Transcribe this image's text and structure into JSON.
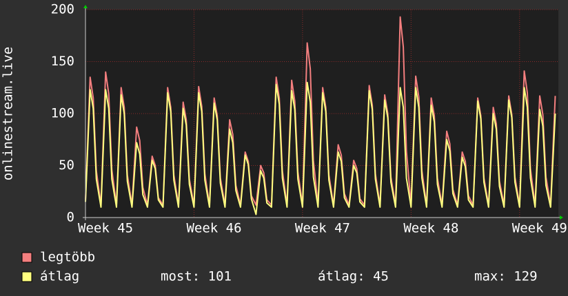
{
  "chart_data": {
    "type": "line",
    "y_label": "onlinestream.live",
    "x": [
      0,
      0.3,
      0.5,
      0.7,
      1,
      1.3,
      1.5,
      1.7,
      2,
      2.3,
      2.5,
      2.7,
      3,
      3.3,
      3.5,
      3.7,
      4,
      4.3,
      4.5,
      4.7,
      5,
      5.3,
      5.5,
      5.7,
      6,
      6.3,
      6.5,
      6.7,
      7,
      7.3,
      7.5,
      7.7,
      8,
      8.3,
      8.5,
      8.7,
      9,
      9.3,
      9.5,
      9.7,
      10,
      10.3,
      10.5,
      10.7,
      11,
      11.3,
      11.5,
      11.7,
      12,
      12.3,
      12.5,
      12.7,
      13,
      13.3,
      13.5,
      13.7,
      14,
      14.3,
      14.5,
      14.7,
      15,
      15.3,
      15.5,
      15.7,
      16,
      16.3,
      16.5,
      16.7,
      17,
      17.3,
      17.5,
      17.7,
      18,
      18.3,
      18.5,
      18.7,
      19,
      19.3,
      19.5,
      19.7,
      20,
      20.3,
      20.5,
      20.7,
      21,
      21.3,
      21.5,
      21.7,
      22,
      22.3,
      22.5,
      22.7,
      23,
      23.3,
      23.5,
      23.7,
      24,
      24.3,
      24.5,
      24.7,
      25,
      25.3,
      25.5,
      25.7,
      26,
      26.3,
      26.5,
      26.7,
      27,
      27.3,
      27.5,
      27.7,
      28,
      28.3,
      28.5,
      28.7,
      29,
      29.3,
      29.5,
      29.7,
      30,
      30.3
    ],
    "series": [
      {
        "name": "legtöbb",
        "color": "#f47f7f",
        "values": [
          17,
          135,
          115,
          45,
          12,
          140,
          119,
          46,
          12,
          125,
          106,
          41,
          12,
          87,
          74,
          29,
          12,
          59,
          50,
          19,
          12,
          125,
          106,
          41,
          12,
          111,
          94,
          37,
          12,
          126,
          107,
          42,
          12,
          115,
          98,
          38,
          12,
          94,
          80,
          31,
          12,
          63,
          54,
          21,
          12,
          50,
          43,
          17,
          12,
          135,
          115,
          45,
          12,
          132,
          112,
          44,
          12,
          168,
          143,
          55,
          12,
          125,
          106,
          41,
          12,
          70,
          60,
          23,
          12,
          55,
          47,
          18,
          12,
          127,
          108,
          42,
          12,
          118,
          100,
          39,
          12,
          193,
          164,
          64,
          12,
          136,
          116,
          45,
          12,
          115,
          98,
          38,
          12,
          83,
          71,
          27,
          12,
          63,
          54,
          21,
          12,
          115,
          98,
          38,
          12,
          106,
          90,
          35,
          12,
          117,
          99,
          39,
          12,
          141,
          120,
          47,
          12,
          117,
          99,
          39,
          12,
          117
        ]
      },
      {
        "name": "átlag",
        "color": "#ffff80",
        "values": [
          15,
          123,
          105,
          37,
          10,
          123,
          105,
          37,
          10,
          118,
          100,
          35,
          10,
          72,
          61,
          22,
          10,
          55,
          47,
          17,
          10,
          120,
          102,
          36,
          10,
          105,
          89,
          32,
          10,
          120,
          102,
          36,
          10,
          110,
          94,
          33,
          10,
          85,
          72,
          26,
          10,
          60,
          51,
          18,
          3,
          45,
          38,
          14,
          10,
          128,
          109,
          38,
          10,
          122,
          104,
          37,
          10,
          130,
          111,
          39,
          10,
          120,
          102,
          36,
          10,
          63,
          54,
          19,
          10,
          50,
          43,
          15,
          10,
          122,
          104,
          37,
          10,
          113,
          96,
          34,
          10,
          125,
          106,
          38,
          10,
          125,
          106,
          38,
          10,
          108,
          92,
          32,
          10,
          75,
          64,
          23,
          10,
          58,
          49,
          17,
          10,
          112,
          95,
          34,
          10,
          100,
          85,
          30,
          10,
          113,
          96,
          34,
          10,
          125,
          106,
          38,
          10,
          104,
          88,
          31,
          10,
          100
        ]
      }
    ],
    "xlim": [
      0,
      30.5
    ],
    "xticks": [
      {
        "value": 0,
        "label": "Week 45"
      },
      {
        "value": 7,
        "label": "Week 46"
      },
      {
        "value": 14,
        "label": "Week 47"
      },
      {
        "value": 21,
        "label": "Week 48"
      },
      {
        "value": 28,
        "label": "Week 49"
      }
    ],
    "ylim": [
      0,
      200
    ],
    "yticks": [
      0,
      50,
      100,
      150,
      200
    ],
    "grid": true,
    "stats": [
      "most: 101",
      "átlag: 45",
      "max: 129"
    ]
  }
}
